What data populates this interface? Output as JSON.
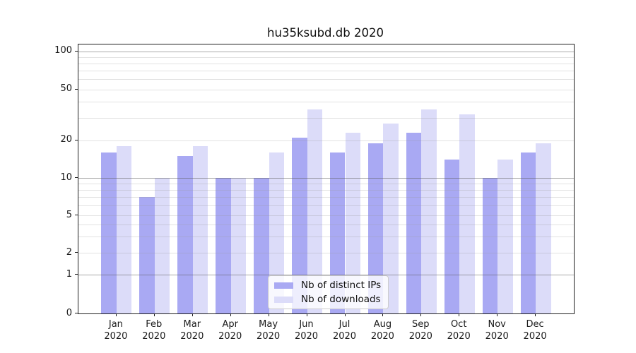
{
  "chart_data": {
    "type": "bar",
    "title": "hu35ksubd.db 2020",
    "categories": [
      "Jan",
      "Feb",
      "Mar",
      "Apr",
      "May",
      "Jun",
      "Jul",
      "Aug",
      "Sep",
      "Oct",
      "Nov",
      "Dec"
    ],
    "x_year_label": "2020",
    "series": [
      {
        "name": "Nb of distinct IPs",
        "color": "#a9a9f3",
        "values": [
          16,
          7,
          15,
          10,
          10,
          21,
          16,
          19,
          23,
          14,
          10,
          16
        ]
      },
      {
        "name": "Nb of downloads",
        "color": "#dcdcf9",
        "values": [
          18,
          10,
          18,
          10,
          16,
          35,
          23,
          27,
          35,
          32,
          14,
          19
        ]
      }
    ],
    "yscale": "asinh-log",
    "ylim": [
      0,
      113
    ],
    "yticks": [
      0,
      1,
      2,
      5,
      10,
      20,
      50,
      100
    ],
    "grid_major_values": [
      1,
      10,
      100
    ],
    "grid_minor_values": [
      2,
      3,
      4,
      5,
      6,
      7,
      8,
      9,
      20,
      30,
      40,
      50,
      60,
      70,
      80,
      90
    ],
    "legend_position": "lower center",
    "xlabel": "",
    "ylabel": ""
  },
  "colors": {
    "grid_major": "#a9a9a9",
    "grid_minor": "#e2e2e2",
    "spine": "#1f1f1f",
    "background": "#ffffff"
  }
}
